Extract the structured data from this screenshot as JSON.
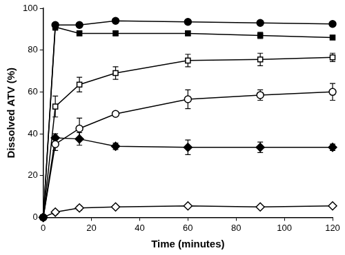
{
  "chart_data": {
    "type": "line",
    "x_label": "Time (minutes)",
    "y_label": "Dissolved ATV (%)",
    "x": [
      0,
      5,
      15,
      30,
      60,
      90,
      120
    ],
    "xlim": [
      0,
      120
    ],
    "xticks": [
      0,
      20,
      40,
      60,
      80,
      100,
      120
    ],
    "ylim": [
      0,
      100
    ],
    "yticks": [
      0,
      20,
      40,
      60,
      80,
      100
    ],
    "grid": false,
    "series": [
      {
        "color": "#000000",
        "marker": "filled circle",
        "values": [
          0,
          92,
          92,
          94,
          93.5,
          93,
          92.5
        ],
        "errors": [
          0,
          1,
          1,
          1,
          1,
          1,
          1
        ]
      },
      {
        "color": "#000000",
        "marker": "filled square",
        "values": [
          0,
          91,
          88,
          88,
          88,
          87,
          86
        ],
        "errors": [
          0,
          1.5,
          1,
          1,
          1,
          1.5,
          1
        ]
      },
      {
        "color": "#000000",
        "marker": "open square",
        "values": [
          0,
          53,
          63.5,
          69,
          75,
          75.5,
          76.5
        ],
        "errors": [
          0,
          5,
          3.5,
          3,
          3,
          3,
          2
        ]
      },
      {
        "color": "#000000",
        "marker": "open circle",
        "values": [
          0,
          35,
          42.5,
          49.5,
          56.5,
          58.5,
          60
        ],
        "errors": [
          0,
          3,
          5,
          1,
          4.5,
          2.5,
          4
        ]
      },
      {
        "color": "#000000",
        "marker": "filled diamond",
        "values": [
          0,
          38,
          37.5,
          34,
          33.5,
          33.5,
          33.5
        ],
        "errors": [
          0,
          2,
          3,
          1.5,
          3.5,
          2.5,
          1.5
        ]
      },
      {
        "color": "#000000",
        "marker": "open diamond",
        "values": [
          0,
          2.5,
          4.5,
          5,
          5.5,
          5,
          5.5
        ],
        "errors": [
          0,
          1,
          1,
          0.5,
          0.5,
          0.5,
          0.5
        ]
      }
    ]
  }
}
